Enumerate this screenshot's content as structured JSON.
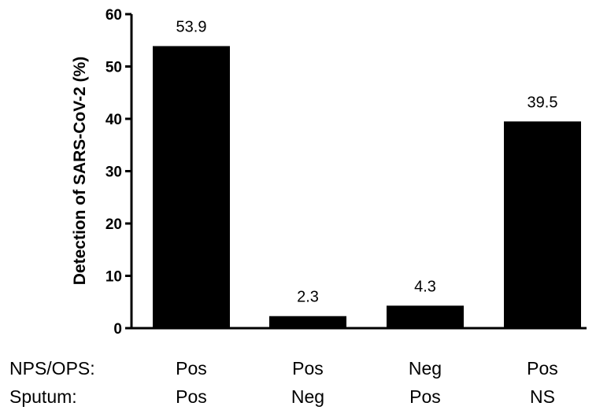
{
  "chart_data": {
    "type": "bar",
    "title": "",
    "xlabel": "",
    "ylabel": "Detection of SARS-CoV-2 (%)",
    "ylim": [
      0,
      60
    ],
    "yticks": [
      0,
      10,
      20,
      30,
      40,
      50,
      60
    ],
    "values": [
      53.9,
      2.3,
      4.3,
      39.5
    ],
    "data_labels": [
      "53.9",
      "2.3",
      "4.3",
      "39.5"
    ],
    "row_headers": [
      "NPS/OPS:",
      "Sputum:"
    ],
    "category_rows": [
      [
        "Pos",
        "Pos",
        "Neg",
        "Pos"
      ],
      [
        "Pos",
        "Neg",
        "Pos",
        "NS"
      ]
    ],
    "bar_color": "#000000",
    "grid": false,
    "legend": "none"
  }
}
